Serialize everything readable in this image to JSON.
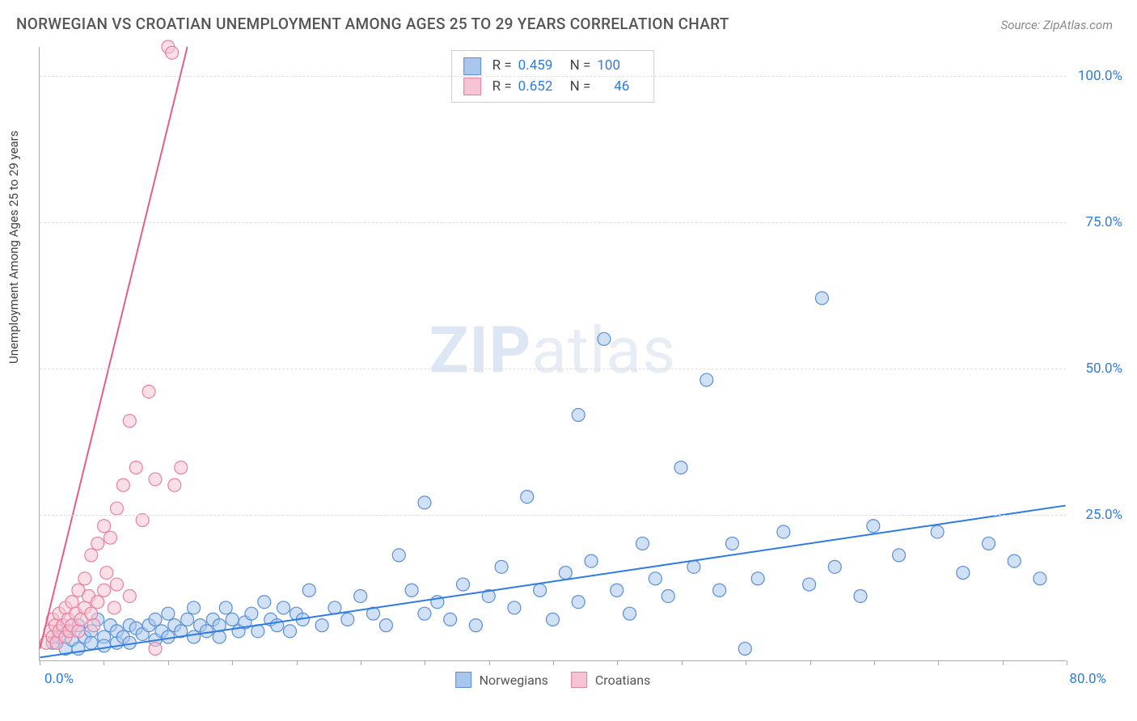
{
  "title": "NORWEGIAN VS CROATIAN UNEMPLOYMENT AMONG AGES 25 TO 29 YEARS CORRELATION CHART",
  "source": "Source: ZipAtlas.com",
  "ylabel": "Unemployment Among Ages 25 to 29 years",
  "watermark_bold": "ZIP",
  "watermark_light": "atlas",
  "colors": {
    "blue_fill": "#a9c6ec",
    "blue_stroke": "#5a8fd6",
    "blue_line": "#2e7be6",
    "pink_fill": "#f6c4d2",
    "pink_stroke": "#e77fa3",
    "pink_line": "#e65c8a",
    "tick_text": "#2e7be6",
    "grid": "#dddddd"
  },
  "chart": {
    "type": "scatter",
    "xlim": [
      0,
      80
    ],
    "ylim": [
      0,
      105
    ],
    "yticks": [
      25,
      50,
      75,
      100
    ],
    "ytick_labels": [
      "25.0%",
      "50.0%",
      "75.0%",
      "100.0%"
    ],
    "x_origin_label": "0.0%",
    "x_max_label": "80.0%",
    "xtick_marks": [
      0,
      5,
      10,
      15,
      20,
      25,
      30,
      35,
      40,
      45,
      50,
      55,
      60,
      65,
      70,
      75,
      80
    ],
    "marker_radius": 8,
    "marker_opacity": 0.55,
    "line_width": 2
  },
  "series": [
    {
      "name": "Norwegians",
      "color_fill": "#a9c6ec",
      "color_stroke": "#5a8fd6",
      "line_color": "#2e7be6",
      "R": "0.459",
      "N": "100",
      "trend": {
        "x1": 0,
        "y1": 0.5,
        "x2": 80,
        "y2": 26.5
      },
      "points": [
        [
          1,
          3
        ],
        [
          1.5,
          4
        ],
        [
          2,
          2
        ],
        [
          2.2,
          5
        ],
        [
          2.5,
          3.5
        ],
        [
          3,
          6
        ],
        [
          3,
          2
        ],
        [
          3.5,
          4
        ],
        [
          4,
          5
        ],
        [
          4,
          3
        ],
        [
          4.5,
          7
        ],
        [
          5,
          4
        ],
        [
          5,
          2.5
        ],
        [
          5.5,
          6
        ],
        [
          6,
          3
        ],
        [
          6,
          5
        ],
        [
          6.5,
          4
        ],
        [
          7,
          6
        ],
        [
          7,
          3
        ],
        [
          7.5,
          5.5
        ],
        [
          8,
          4.5
        ],
        [
          8.5,
          6
        ],
        [
          9,
          3.5
        ],
        [
          9,
          7
        ],
        [
          9.5,
          5
        ],
        [
          10,
          4
        ],
        [
          10,
          8
        ],
        [
          10.5,
          6
        ],
        [
          11,
          5
        ],
        [
          11.5,
          7
        ],
        [
          12,
          4
        ],
        [
          12,
          9
        ],
        [
          12.5,
          6
        ],
        [
          13,
          5
        ],
        [
          13.5,
          7
        ],
        [
          14,
          6
        ],
        [
          14,
          4
        ],
        [
          14.5,
          9
        ],
        [
          15,
          7
        ],
        [
          15.5,
          5
        ],
        [
          16,
          6.5
        ],
        [
          16.5,
          8
        ],
        [
          17,
          5
        ],
        [
          17.5,
          10
        ],
        [
          18,
          7
        ],
        [
          18.5,
          6
        ],
        [
          19,
          9
        ],
        [
          19.5,
          5
        ],
        [
          20,
          8
        ],
        [
          20.5,
          7
        ],
        [
          21,
          12
        ],
        [
          22,
          6
        ],
        [
          23,
          9
        ],
        [
          24,
          7
        ],
        [
          25,
          11
        ],
        [
          26,
          8
        ],
        [
          27,
          6
        ],
        [
          28,
          18
        ],
        [
          29,
          12
        ],
        [
          30,
          8
        ],
        [
          30,
          27
        ],
        [
          31,
          10
        ],
        [
          32,
          7
        ],
        [
          33,
          13
        ],
        [
          34,
          6
        ],
        [
          35,
          11
        ],
        [
          36,
          16
        ],
        [
          37,
          9
        ],
        [
          38,
          28
        ],
        [
          39,
          12
        ],
        [
          40,
          7
        ],
        [
          41,
          15
        ],
        [
          42,
          10
        ],
        [
          42,
          42
        ],
        [
          43,
          17
        ],
        [
          44,
          55
        ],
        [
          45,
          12
        ],
        [
          46,
          8
        ],
        [
          47,
          20
        ],
        [
          48,
          14
        ],
        [
          49,
          11
        ],
        [
          50,
          33
        ],
        [
          51,
          16
        ],
        [
          52,
          48
        ],
        [
          53,
          12
        ],
        [
          54,
          20
        ],
        [
          55,
          2
        ],
        [
          56,
          14
        ],
        [
          58,
          22
        ],
        [
          60,
          13
        ],
        [
          61,
          62
        ],
        [
          62,
          16
        ],
        [
          64,
          11
        ],
        [
          65,
          23
        ],
        [
          67,
          18
        ],
        [
          70,
          22
        ],
        [
          72,
          15
        ],
        [
          74,
          20
        ],
        [
          76,
          17
        ],
        [
          78,
          14
        ]
      ]
    },
    {
      "name": "Croatians",
      "color_fill": "#f6c4d2",
      "color_stroke": "#e77fa3",
      "line_color": "#e65c8a",
      "R": "0.652",
      "N": "46",
      "trend": {
        "x1": 0,
        "y1": 2,
        "x2": 11.5,
        "y2": 105
      },
      "points": [
        [
          0.5,
          3
        ],
        [
          0.8,
          5
        ],
        [
          1,
          4
        ],
        [
          1,
          7
        ],
        [
          1.2,
          6
        ],
        [
          1.3,
          3
        ],
        [
          1.5,
          8
        ],
        [
          1.5,
          5
        ],
        [
          1.8,
          6
        ],
        [
          2,
          4
        ],
        [
          2,
          9
        ],
        [
          2.2,
          7
        ],
        [
          2.3,
          5
        ],
        [
          2.5,
          10
        ],
        [
          2.5,
          6
        ],
        [
          2.8,
          8
        ],
        [
          3,
          5
        ],
        [
          3,
          12
        ],
        [
          3.2,
          7
        ],
        [
          3.5,
          9
        ],
        [
          3.5,
          14
        ],
        [
          3.8,
          11
        ],
        [
          4,
          8
        ],
        [
          4,
          18
        ],
        [
          4.2,
          6
        ],
        [
          4.5,
          20
        ],
        [
          4.5,
          10
        ],
        [
          5,
          23
        ],
        [
          5,
          12
        ],
        [
          5.2,
          15
        ],
        [
          5.5,
          21
        ],
        [
          5.8,
          9
        ],
        [
          6,
          26
        ],
        [
          6,
          13
        ],
        [
          6.5,
          30
        ],
        [
          7,
          11
        ],
        [
          7,
          41
        ],
        [
          7.5,
          33
        ],
        [
          8,
          24
        ],
        [
          8.5,
          46
        ],
        [
          9,
          2
        ],
        [
          9,
          31
        ],
        [
          10,
          105
        ],
        [
          10.3,
          104
        ],
        [
          10.5,
          30
        ],
        [
          11,
          33
        ]
      ]
    }
  ],
  "legend": {
    "items": [
      {
        "label": "Norwegians",
        "fill": "#a9c6ec",
        "stroke": "#5a8fd6"
      },
      {
        "label": "Croatians",
        "fill": "#f6c4d2",
        "stroke": "#e77fa3"
      }
    ]
  }
}
